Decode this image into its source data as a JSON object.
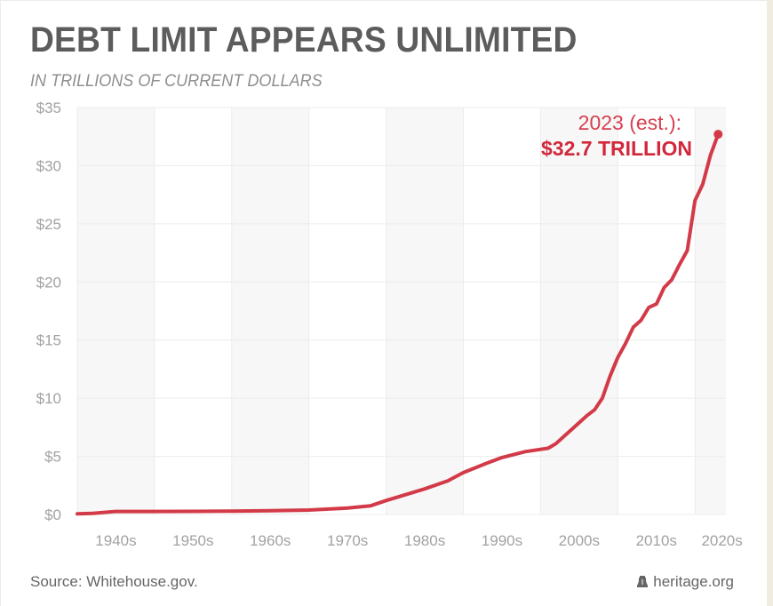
{
  "header": {
    "title": "DEBT LIMIT APPEARS UNLIMITED",
    "subtitle": "IN TRILLIONS OF CURRENT DOLLARS"
  },
  "footer": {
    "source": "Source: Whitehouse.gov.",
    "brand": "heritage.org",
    "brand_icon": "liberty-bell-icon"
  },
  "colors": {
    "line": "#d33a48",
    "annotation": "#d2283c",
    "band": "#f7f7f7",
    "grid": "#ececec",
    "tick": "#a2a2a2"
  },
  "chart_data": {
    "type": "line",
    "title": "DEBT LIMIT APPEARS UNLIMITED",
    "subtitle": "IN TRILLIONS OF CURRENT DOLLARS",
    "xlabel": "",
    "ylabel": "",
    "xlim": [
      1940,
      2023
    ],
    "ylim": [
      0,
      35
    ],
    "grid": true,
    "y_ticks": [
      0,
      5,
      10,
      15,
      20,
      25,
      30,
      35
    ],
    "y_tick_labels": [
      "$0",
      "$5",
      "$10",
      "$15",
      "$20",
      "$25",
      "$30",
      "$35"
    ],
    "x_tick_labels": [
      "1940s",
      "1950s",
      "1960s",
      "1970s",
      "1980s",
      "1990s",
      "2000s",
      "2010s",
      "2020s"
    ],
    "x_tick_positions": [
      1945,
      1955,
      1965,
      1975,
      1985,
      1995,
      2005,
      2015,
      2023.5
    ],
    "series": [
      {
        "name": "Debt limit (trillions of current dollars)",
        "x": [
          1940,
          1942,
          1945,
          1950,
          1955,
          1960,
          1965,
          1970,
          1975,
          1978,
          1980,
          1982,
          1985,
          1988,
          1990,
          1993,
          1995,
          1998,
          2000,
          2001,
          2002,
          2003,
          2004,
          2005,
          2006,
          2007,
          2008,
          2009,
          2010,
          2011,
          2012,
          2013,
          2014,
          2015,
          2016,
          2017,
          2018,
          2019,
          2020,
          2021,
          2022,
          2023
        ],
        "values": [
          0.05,
          0.1,
          0.26,
          0.26,
          0.27,
          0.29,
          0.32,
          0.38,
          0.55,
          0.75,
          1.2,
          1.6,
          2.2,
          2.9,
          3.6,
          4.4,
          4.9,
          5.4,
          5.6,
          5.7,
          6.1,
          6.7,
          7.3,
          7.9,
          8.5,
          9.0,
          10.0,
          11.9,
          13.5,
          14.7,
          16.1,
          16.7,
          17.8,
          18.1,
          19.5,
          20.2,
          21.5,
          22.7,
          27.0,
          28.4,
          30.9,
          32.7
        ]
      }
    ],
    "annotations": [
      {
        "label": "2023 (est.):",
        "x": 2023,
        "y": 32.7
      },
      {
        "label": "$32.7 TRILLION",
        "x": 2023,
        "y": 32.7
      }
    ],
    "endpoint": {
      "x": 2023,
      "y": 32.7
    }
  }
}
